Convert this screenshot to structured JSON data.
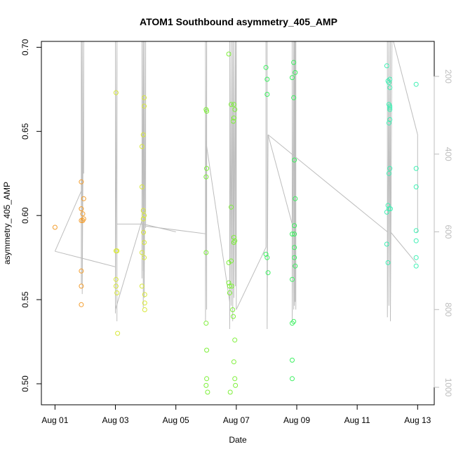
{
  "chart_data": {
    "type": "scatter",
    "title": "ATOM1 Southbound asymmetry_405_AMP",
    "xlabel": "Date",
    "ylabel": "asymmetry_405_AMP",
    "x_axis": {
      "unit": "day of August",
      "range": [
        0.55,
        13.55
      ],
      "ticks": [
        1,
        3,
        5,
        7,
        9,
        11,
        13
      ],
      "tick_labels": [
        "Aug 01",
        "Aug 03",
        "Aug 05",
        "Aug 07",
        "Aug 09",
        "Aug 11",
        "Aug 13"
      ]
    },
    "y_axis": {
      "range": [
        0.4875,
        0.7035
      ],
      "ticks": [
        0.5,
        0.55,
        0.6,
        0.65,
        0.7
      ],
      "tick_labels": [
        "0.50",
        "0.55",
        "0.60",
        "0.65",
        "0.70"
      ]
    },
    "y2_axis": {
      "range": [
        1045,
        110
      ],
      "ticks": [
        200,
        400,
        600,
        800,
        1000
      ],
      "tick_labels": [
        "200",
        "400",
        "600",
        "800",
        "1000"
      ],
      "color": "#bdbdbd",
      "reversed": true
    },
    "point_style": "open-circle",
    "series": [
      {
        "color": "#f39c2b",
        "points": [
          [
            1.0,
            0.593
          ],
          [
            1.87,
            0.62
          ],
          [
            1.87,
            0.604
          ],
          [
            1.87,
            0.597
          ],
          [
            1.87,
            0.567
          ],
          [
            1.87,
            0.558
          ],
          [
            1.87,
            0.547
          ],
          [
            1.92,
            0.601
          ],
          [
            1.92,
            0.597
          ],
          [
            1.95,
            0.61
          ],
          [
            1.95,
            0.598
          ]
        ]
      },
      {
        "color": "#d8e83a",
        "points": [
          [
            3.02,
            0.673
          ],
          [
            3.02,
            0.579
          ],
          [
            3.02,
            0.562
          ],
          [
            3.02,
            0.558
          ],
          [
            3.05,
            0.554
          ],
          [
            3.05,
            0.579
          ],
          [
            3.07,
            0.53
          ],
          [
            3.88,
            0.641
          ],
          [
            3.88,
            0.617
          ],
          [
            3.88,
            0.578
          ],
          [
            3.88,
            0.558
          ],
          [
            3.92,
            0.648
          ],
          [
            3.92,
            0.603
          ],
          [
            3.92,
            0.598
          ],
          [
            3.93,
            0.59
          ],
          [
            3.95,
            0.67
          ],
          [
            3.95,
            0.665
          ],
          [
            3.95,
            0.6
          ],
          [
            3.95,
            0.584
          ],
          [
            3.95,
            0.575
          ],
          [
            3.97,
            0.553
          ],
          [
            3.97,
            0.548
          ],
          [
            3.97,
            0.544
          ]
        ]
      },
      {
        "color": "#7ef03a",
        "points": [
          [
            6.0,
            0.663
          ],
          [
            6.0,
            0.623
          ],
          [
            6.0,
            0.578
          ],
          [
            6.0,
            0.536
          ],
          [
            6.0,
            0.499
          ],
          [
            6.02,
            0.662
          ],
          [
            6.02,
            0.628
          ],
          [
            6.02,
            0.52
          ],
          [
            6.02,
            0.503
          ],
          [
            6.05,
            0.495
          ],
          [
            6.75,
            0.696
          ],
          [
            6.75,
            0.572
          ],
          [
            6.75,
            0.56
          ],
          [
            6.78,
            0.558
          ],
          [
            6.78,
            0.554
          ],
          [
            6.8,
            0.495
          ],
          [
            6.83,
            0.666
          ],
          [
            6.83,
            0.605
          ],
          [
            6.83,
            0.573
          ],
          [
            6.85,
            0.558
          ],
          [
            6.88,
            0.544
          ],
          [
            6.9,
            0.656
          ],
          [
            6.9,
            0.54
          ],
          [
            6.92,
            0.666
          ],
          [
            6.92,
            0.658
          ],
          [
            6.92,
            0.587
          ],
          [
            6.92,
            0.584
          ],
          [
            6.92,
            0.513
          ],
          [
            6.95,
            0.663
          ],
          [
            6.95,
            0.585
          ],
          [
            6.95,
            0.526
          ],
          [
            6.95,
            0.503
          ],
          [
            6.97,
            0.499
          ]
        ]
      },
      {
        "color": "#3cf060",
        "points": [
          [
            7.98,
            0.688
          ],
          [
            7.98,
            0.577
          ],
          [
            8.02,
            0.681
          ],
          [
            8.02,
            0.672
          ],
          [
            8.02,
            0.575
          ],
          [
            8.05,
            0.566
          ],
          [
            8.85,
            0.682
          ],
          [
            8.85,
            0.589
          ],
          [
            8.85,
            0.562
          ],
          [
            8.85,
            0.536
          ],
          [
            8.85,
            0.514
          ],
          [
            8.85,
            0.503
          ],
          [
            8.9,
            0.691
          ],
          [
            8.9,
            0.67
          ],
          [
            8.9,
            0.537
          ],
          [
            8.92,
            0.633
          ],
          [
            8.92,
            0.594
          ],
          [
            8.92,
            0.589
          ],
          [
            8.92,
            0.581
          ],
          [
            8.92,
            0.575
          ],
          [
            8.95,
            0.685
          ],
          [
            8.95,
            0.61
          ],
          [
            8.95,
            0.57
          ]
        ]
      },
      {
        "color": "#3ff0b4",
        "points": [
          [
            11.98,
            0.689
          ],
          [
            11.98,
            0.602
          ],
          [
            11.98,
            0.583
          ],
          [
            12.02,
            0.68
          ],
          [
            12.02,
            0.606
          ],
          [
            12.02,
            0.572
          ],
          [
            12.05,
            0.679
          ],
          [
            12.05,
            0.666
          ],
          [
            12.05,
            0.655
          ],
          [
            12.05,
            0.625
          ],
          [
            12.05,
            0.604
          ],
          [
            12.08,
            0.681
          ],
          [
            12.08,
            0.676
          ],
          [
            12.08,
            0.665
          ],
          [
            12.08,
            0.664
          ],
          [
            12.08,
            0.663
          ],
          [
            12.08,
            0.657
          ],
          [
            12.08,
            0.628
          ],
          [
            12.1,
            0.604
          ],
          [
            12.95,
            0.678
          ],
          [
            12.95,
            0.628
          ],
          [
            12.95,
            0.617
          ],
          [
            12.95,
            0.591
          ],
          [
            12.95,
            0.585
          ],
          [
            12.95,
            0.575
          ],
          [
            12.95,
            0.57
          ]
        ]
      }
    ],
    "trace": {
      "color": "#bdbdbd",
      "axis": "y2",
      "segments": [
        [
          [
            1.0,
            650
          ],
          [
            1.87,
            495
          ],
          [
            1.87,
            110
          ],
          [
            1.87,
            735
          ],
          [
            1.87,
            580
          ],
          [
            1.9,
            110
          ],
          [
            1.9,
            760
          ],
          [
            1.95,
            110
          ],
          [
            1.95,
            450
          ]
        ],
        [
          [
            1.0,
            650
          ],
          [
            3.0,
            690
          ],
          [
            3.0,
            110
          ],
          [
            3.0,
            810
          ],
          [
            3.05,
            110
          ],
          [
            3.05,
            830
          ]
        ],
        [
          [
            3.0,
            800
          ],
          [
            3.88,
            570
          ],
          [
            3.88,
            110
          ],
          [
            3.88,
            720
          ],
          [
            3.92,
            110
          ],
          [
            3.92,
            795
          ],
          [
            3.95,
            110
          ],
          [
            3.95,
            770
          ],
          [
            4.0,
            110
          ],
          [
            4.0,
            590
          ]
        ],
        [
          [
            3.05,
            580
          ],
          [
            3.92,
            580
          ],
          [
            3.92,
            700
          ]
        ],
        [
          [
            3.92,
            580
          ],
          [
            5.0,
            600
          ]
        ],
        [
          [
            4.0,
            585
          ],
          [
            5.98,
            605
          ],
          [
            5.98,
            110
          ],
          [
            5.98,
            830
          ],
          [
            6.02,
            110
          ],
          [
            6.02,
            800
          ],
          [
            6.02,
            380
          ]
        ],
        [
          [
            6.02,
            380
          ],
          [
            6.78,
            780
          ]
        ],
        [
          [
            6.78,
            780
          ],
          [
            6.78,
            110
          ],
          [
            6.78,
            850
          ],
          [
            6.83,
            110
          ],
          [
            6.83,
            790
          ],
          [
            6.88,
            110
          ],
          [
            6.88,
            830
          ],
          [
            6.92,
            110
          ],
          [
            6.92,
            770
          ],
          [
            6.97,
            110
          ],
          [
            6.97,
            740
          ],
          [
            7.0,
            110
          ],
          [
            7.0,
            800
          ]
        ],
        [
          [
            6.02,
            110
          ],
          [
            6.78,
            110
          ]
        ],
        [
          [
            7.0,
            800
          ],
          [
            7.98,
            640
          ],
          [
            7.98,
            110
          ],
          [
            8.02,
            110
          ],
          [
            8.02,
            850
          ],
          [
            8.05,
            350
          ]
        ],
        [
          [
            8.05,
            350
          ],
          [
            8.85,
            580
          ],
          [
            8.85,
            110
          ],
          [
            8.85,
            830
          ],
          [
            8.9,
            110
          ],
          [
            8.9,
            800
          ],
          [
            8.92,
            110
          ],
          [
            8.92,
            790
          ],
          [
            8.95,
            110
          ],
          [
            8.95,
            780
          ],
          [
            8.97,
            110
          ],
          [
            8.97,
            800
          ]
        ],
        [
          [
            8.05,
            350
          ],
          [
            12.0,
            600
          ],
          [
            12.0,
            110
          ],
          [
            12.0,
            820
          ],
          [
            12.05,
            110
          ],
          [
            12.05,
            790
          ],
          [
            12.1,
            110
          ],
          [
            12.1,
            830
          ],
          [
            12.15,
            110
          ]
        ],
        [
          [
            12.15,
            110
          ],
          [
            12.2,
            110
          ],
          [
            13.0,
            350
          ],
          [
            13.0,
            600
          ],
          [
            12.95,
            600
          ]
        ],
        [
          [
            12.1,
            600
          ],
          [
            12.95,
            680
          ]
        ]
      ]
    }
  }
}
